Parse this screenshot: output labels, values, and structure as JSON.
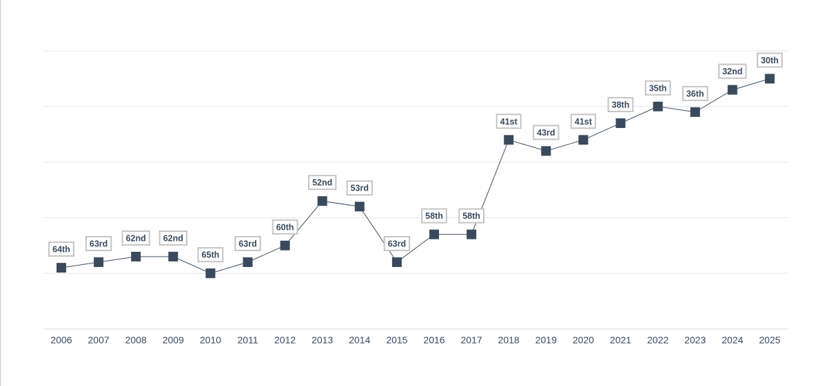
{
  "chart_data": {
    "type": "line",
    "title": "",
    "xlabel": "",
    "ylabel": "",
    "categories": [
      "2006",
      "2007",
      "2008",
      "2009",
      "2010",
      "2011",
      "2012",
      "2013",
      "2014",
      "2015",
      "2016",
      "2017",
      "2018",
      "2019",
      "2020",
      "2021",
      "2022",
      "2023",
      "2024",
      "2025"
    ],
    "series": [
      {
        "values": [
          64,
          63,
          62,
          62,
          65,
          63,
          60,
          52,
          53,
          63,
          58,
          58,
          41,
          43,
          41,
          38,
          35,
          36,
          32,
          30
        ],
        "labels": [
          "64th",
          "63rd",
          "62nd",
          "62nd",
          "65th",
          "63rd",
          "60th",
          "52nd",
          "53rd",
          "63rd",
          "58th",
          "58th",
          "41st",
          "43rd",
          "41st",
          "38th",
          "35th",
          "36th",
          "32nd",
          "30th"
        ]
      }
    ],
    "y_reversed": true,
    "ylim": [
      75,
      25
    ],
    "grid": true,
    "y_tick_labels_shown": false,
    "colors": {
      "series": "#3a4a5c",
      "label_border": "#c4c4c4",
      "grid": "#e3e6ea"
    }
  }
}
